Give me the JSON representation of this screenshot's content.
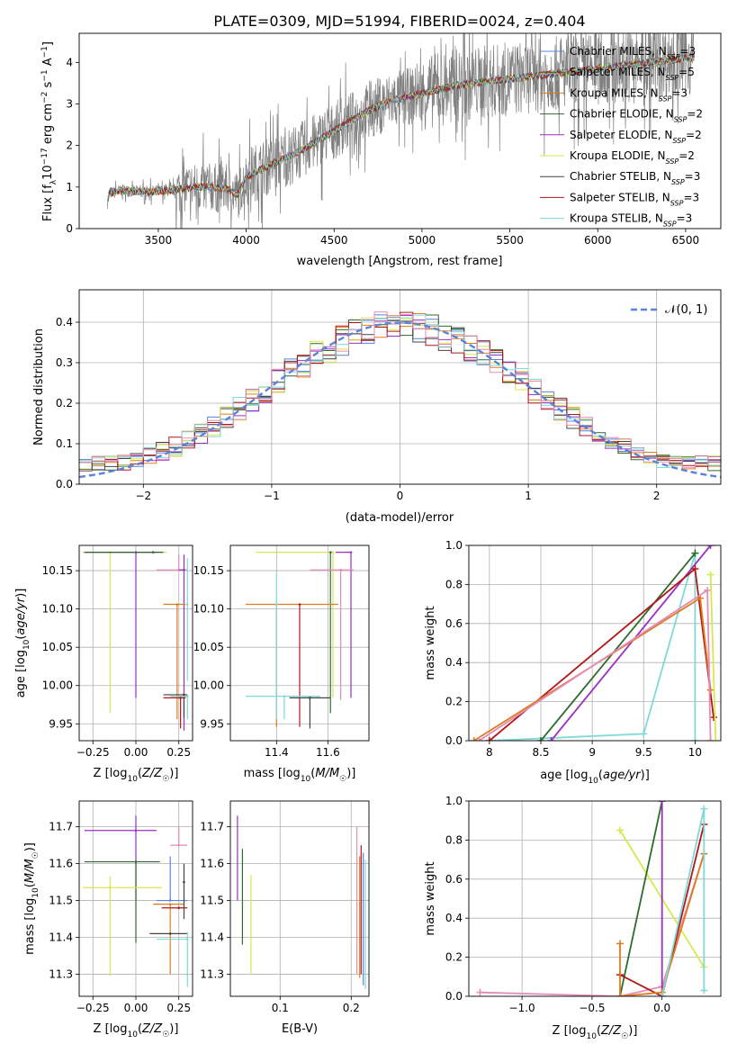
{
  "figure": {
    "title": "PLATE=0309, MJD=51994, FIBERID=0024, z=0.404"
  },
  "colors": {
    "chabrier_miles": "#5b84d8",
    "salpeter_miles": "#7b3f00",
    "kroupa_miles": "#e07a1e",
    "chabrier_elodie": "#2e6b2e",
    "salpeter_elodie": "#9b2fc2",
    "kroupa_elodie": "#d7e84a",
    "chabrier_stelib": "#444444",
    "salpeter_stelib": "#b01818",
    "kroupa_stelib": "#7fd9d9",
    "data": "#808080",
    "normal": "#5b84d8",
    "pink": "#e58bb8"
  },
  "chart_data": [
    {
      "type": "line",
      "panel": "spectrum",
      "xlabel": "wavelength [Angstrom, rest frame]",
      "ylabel": "Flux [f_λ10^-17 erg cm^-2 s^-1 A^-1]",
      "xlim": [
        3050,
        6700
      ],
      "ylim": [
        0,
        4.7
      ],
      "xticks": [
        3500,
        4000,
        4500,
        5000,
        5500,
        6000,
        6500
      ],
      "yticks": [
        0,
        1,
        2,
        3,
        4
      ],
      "legend_position": "top-right",
      "series": [
        {
          "name": "Chabrier MILES, N_SSP=3",
          "color_key": "chabrier_miles"
        },
        {
          "name": "Salpeter MILES, N_SSP=5",
          "color_key": "salpeter_miles"
        },
        {
          "name": "Kroupa MILES, N_SSP=3",
          "color_key": "kroupa_miles"
        },
        {
          "name": "Chabrier ELODIE, N_SSP=2",
          "color_key": "chabrier_elodie"
        },
        {
          "name": "Salpeter ELODIE, N_SSP=2",
          "color_key": "salpeter_elodie"
        },
        {
          "name": "Kroupa ELODIE, N_SSP=2",
          "color_key": "kroupa_elodie"
        },
        {
          "name": "Chabrier STELIB, N_SSP=3",
          "color_key": "chabrier_stelib"
        },
        {
          "name": "Salpeter STELIB, N_SSP=3",
          "color_key": "salpeter_stelib"
        },
        {
          "name": "Kroupa STELIB, N_SSP=3",
          "color_key": "kroupa_stelib"
        }
      ],
      "model_continuum": {
        "x": [
          3200,
          3220,
          3300,
          3400,
          3500,
          3600,
          3700,
          3800,
          3900,
          3950,
          4000,
          4100,
          4200,
          4300,
          4400,
          4500,
          4600,
          4700,
          4800,
          4900,
          5000,
          5100,
          5200,
          5300,
          5400,
          5500,
          5600,
          5700,
          5800,
          5900,
          6000,
          6100,
          6200,
          6300,
          6400,
          6500,
          6550
        ],
        "y": [
          0.4,
          0.85,
          0.92,
          0.88,
          0.9,
          0.93,
          1.0,
          1.0,
          0.95,
          0.8,
          1.25,
          1.45,
          1.65,
          1.85,
          2.1,
          2.35,
          2.6,
          2.85,
          3.05,
          3.15,
          3.25,
          3.35,
          3.45,
          3.5,
          3.55,
          3.6,
          3.65,
          3.7,
          3.75,
          3.8,
          3.85,
          3.9,
          3.95,
          4.0,
          4.05,
          4.1,
          4.12
        ]
      }
    },
    {
      "type": "histogram",
      "panel": "residuals",
      "xlabel": "(data-model)/error",
      "ylabel": "Normed distribution",
      "xlim": [
        -2.5,
        2.5
      ],
      "ylim": [
        0,
        0.48
      ],
      "xticks": [
        -2,
        -1,
        0,
        1,
        2
      ],
      "yticks": [
        0.0,
        0.1,
        0.2,
        0.3,
        0.4
      ],
      "grid": true,
      "legend": {
        "label": "𝒩(0, 1)",
        "position": "top-right"
      },
      "normal_pdf": {
        "mean": 0,
        "sigma": 1
      }
    },
    {
      "type": "scatter",
      "panel": "age_vs_Z",
      "xlabel": "Z [log10(Z/Z☉)]",
      "ylabel": "age [log10(age/yr)]",
      "xlim": [
        -0.33,
        0.33
      ],
      "ylim": [
        9.928,
        10.183
      ],
      "xticks": [
        -0.25,
        0.0,
        0.25
      ],
      "xticklabels": [
        "−0.25",
        "0.00",
        "0.25"
      ],
      "yticks": [
        9.95,
        10.0,
        10.05,
        10.1,
        10.15
      ],
      "yticklabels": [
        "9.95",
        "10.00",
        "10.05",
        "10.10",
        "10.15"
      ],
      "grid": true,
      "points": [
        {
          "x": -0.15,
          "y": 10.174,
          "xerr": [
            0.16,
            0.33
          ],
          "yerr": [
            0.21,
            0.0
          ],
          "color_key": "kroupa_elodie"
        },
        {
          "x": 0.0,
          "y": 10.174,
          "xerr": [
            0.3,
            0.12
          ],
          "yerr": [
            0.19,
            0.0
          ],
          "color_key": "salpeter_elodie"
        },
        {
          "x": 0.1,
          "y": 10.174,
          "xerr": [
            0.4,
            0.06
          ],
          "yerr": [
            0.0,
            0.0
          ],
          "color_key": "chabrier_elodie"
        },
        {
          "x": 0.25,
          "y": 10.151,
          "xerr": [
            0.13,
            0.05
          ],
          "yerr": [
            0.0,
            0.02
          ],
          "color_key": "pink"
        },
        {
          "x": 0.28,
          "y": 10.151,
          "xerr": [
            0.03,
            0.0
          ],
          "yerr": [
            0.21,
            0.02
          ],
          "color_key": "salpeter_elodie"
        },
        {
          "x": 0.24,
          "y": 10.106,
          "xerr": [
            0.08,
            0.05
          ],
          "yerr": [
            0.15,
            0.0
          ],
          "color_key": "kroupa_miles"
        },
        {
          "x": 0.3,
          "y": 10.106,
          "xerr": [
            0.0,
            0.0
          ],
          "yerr": [
            0.1,
            0.06
          ],
          "color_key": "kroupa_stelib"
        },
        {
          "x": 0.28,
          "y": 9.988,
          "xerr": [
            0.12,
            0.02
          ],
          "yerr": [
            0.03,
            0.0
          ],
          "color_key": "chabrier_stelib"
        },
        {
          "x": 0.26,
          "y": 9.984,
          "xerr": [
            0.1,
            0.03
          ],
          "yerr": [
            0.04,
            0.0
          ],
          "color_key": "salpeter_stelib"
        },
        {
          "x": 0.3,
          "y": 9.986,
          "xerr": [
            0.1,
            0.0
          ],
          "yerr": [
            0.03,
            0.0
          ],
          "color_key": "kroupa_stelib"
        }
      ]
    },
    {
      "type": "scatter",
      "panel": "age_vs_mass",
      "xlabel": "mass [log10(M/M☉)]",
      "ylabel": "",
      "xlim": [
        11.22,
        11.76
      ],
      "ylim": [
        9.928,
        10.183
      ],
      "xticks": [
        11.4,
        11.6
      ],
      "xticklabels": [
        "11.4",
        "11.6"
      ],
      "yticks": [
        9.95,
        10.0,
        10.05,
        10.1,
        10.15
      ],
      "yticklabels": [
        "9.95",
        "10.00",
        "10.05",
        "10.10",
        "10.15"
      ],
      "grid": true,
      "points": [
        {
          "x": 11.62,
          "y": 10.174,
          "xerr": [
            0.3,
            0.0
          ],
          "yerr": [
            0.19,
            0.0
          ],
          "color_key": "kroupa_elodie"
        },
        {
          "x": 11.69,
          "y": 10.174,
          "xerr": [
            0.06,
            0.0
          ],
          "yerr": [
            0.19,
            0.0
          ],
          "color_key": "salpeter_elodie"
        },
        {
          "x": 11.61,
          "y": 10.174,
          "xerr": [
            0.0,
            0.0
          ],
          "yerr": [
            0.21,
            0.0
          ],
          "color_key": "chabrier_elodie"
        },
        {
          "x": 11.65,
          "y": 10.151,
          "xerr": [
            0.12,
            0.05
          ],
          "yerr": [
            0.17,
            0.0
          ],
          "color_key": "pink"
        },
        {
          "x": 11.4,
          "y": 10.106,
          "xerr": [
            0.12,
            0.24
          ],
          "yerr": [
            0.16,
            0.0
          ],
          "color_key": "kroupa_miles"
        },
        {
          "x": 11.4,
          "y": 10.106,
          "xerr": [
            0.0,
            0.0
          ],
          "yerr": [
            0.15,
            0.04
          ],
          "color_key": "kroupa_stelib"
        },
        {
          "x": 11.49,
          "y": 10.106,
          "xerr": [
            0.0,
            0.0
          ],
          "yerr": [
            0.16,
            0.0
          ],
          "color_key": "salpeter_stelib"
        },
        {
          "x": 11.43,
          "y": 9.986,
          "xerr": [
            0.15,
            0.14
          ],
          "yerr": [
            0.03,
            0.0
          ],
          "color_key": "kroupa_stelib"
        },
        {
          "x": 11.53,
          "y": 9.984,
          "xerr": [
            0.08,
            0.08
          ],
          "yerr": [
            0.04,
            0.0
          ],
          "color_key": "chabrier_stelib"
        }
      ]
    },
    {
      "type": "line",
      "panel": "mass_weight_vs_age",
      "xlabel": "age [log10(age/yr)]",
      "ylabel": "mass weight",
      "xlim": [
        7.8,
        10.25
      ],
      "ylim": [
        0,
        1.0
      ],
      "xticks": [
        8.0,
        8.5,
        9.0,
        9.5,
        10.0
      ],
      "yticks": [
        0.0,
        0.2,
        0.4,
        0.6,
        0.8,
        1.0
      ],
      "grid": true,
      "series": [
        {
          "color_key": "kroupa_stelib",
          "x": [
            8.0,
            9.5,
            10.0,
            10.0
          ],
          "y": [
            0.0,
            0.035,
            0.96,
            0.0
          ]
        },
        {
          "color_key": "chabrier_elodie",
          "x": [
            8.5,
            10.0
          ],
          "y": [
            0.0,
            0.96
          ]
        },
        {
          "color_key": "salpeter_elodie",
          "x": [
            8.6,
            10.15
          ],
          "y": [
            0.0,
            1.0
          ]
        },
        {
          "color_key": "salpeter_stelib",
          "x": [
            8.0,
            10.0,
            10.18
          ],
          "y": [
            0.0,
            0.88,
            0.12
          ]
        },
        {
          "color_key": "kroupa_miles",
          "x": [
            7.85,
            10.05,
            10.15
          ],
          "y": [
            0.0,
            0.73,
            0.26
          ]
        },
        {
          "color_key": "pink",
          "x": [
            7.9,
            10.12,
            10.15
          ],
          "y": [
            0.0,
            0.77,
            0.0
          ]
        },
        {
          "color_key": "kroupa_elodie",
          "x": [
            10.15,
            10.2
          ],
          "y": [
            0.85,
            0.0
          ]
        }
      ]
    },
    {
      "type": "scatter",
      "panel": "mass_vs_Z",
      "xlabel": "Z [log10(Z/Z☉)]",
      "ylabel": "mass [log10(M/M☉)]",
      "xlim": [
        -0.33,
        0.33
      ],
      "ylim": [
        11.24,
        11.77
      ],
      "xticks": [
        -0.25,
        0.0,
        0.25
      ],
      "xticklabels": [
        "−0.25",
        "0.00",
        "0.25"
      ],
      "yticks": [
        11.3,
        11.4,
        11.5,
        11.6,
        11.7
      ],
      "grid": true,
      "points": [
        {
          "x": 0.0,
          "y": 11.69,
          "xerr": [
            0.3,
            0.12
          ],
          "yerr": [
            0.19,
            0.04
          ],
          "color_key": "salpeter_elodie"
        },
        {
          "x": 0.0,
          "y": 11.605,
          "xerr": [
            0.3,
            0.14
          ],
          "yerr": [
            0.22,
            0.0
          ],
          "color_key": "chabrier_elodie"
        },
        {
          "x": -0.15,
          "y": 11.535,
          "xerr": [
            0.16,
            0.3
          ],
          "yerr": [
            0.24,
            0.03
          ],
          "color_key": "kroupa_elodie"
        },
        {
          "x": 0.25,
          "y": 11.65,
          "xerr": [
            0.05,
            0.05
          ],
          "yerr": [
            0.0,
            0.05
          ],
          "color_key": "pink"
        },
        {
          "x": 0.2,
          "y": 11.49,
          "xerr": [
            0.1,
            0.08
          ],
          "yerr": [
            0.19,
            0.0
          ],
          "color_key": "kroupa_miles"
        },
        {
          "x": 0.2,
          "y": 11.5,
          "xerr": [
            0.08,
            0.1
          ],
          "yerr": [
            0.0,
            0.12
          ],
          "color_key": "chabrier_miles"
        },
        {
          "x": 0.25,
          "y": 11.48,
          "xerr": [
            0.1,
            0.05
          ],
          "yerr": [
            0.0,
            0.0
          ],
          "color_key": "salpeter_stelib"
        },
        {
          "x": 0.2,
          "y": 11.41,
          "xerr": [
            0.12,
            0.1
          ],
          "yerr": [
            0.0,
            0.0
          ],
          "color_key": "chabrier_stelib"
        },
        {
          "x": 0.3,
          "y": 11.395,
          "xerr": [
            0.18,
            0.0
          ],
          "yerr": [
            0.13,
            0.02
          ],
          "color_key": "kroupa_stelib"
        },
        {
          "x": 0.28,
          "y": 11.55,
          "xerr": [
            0.0,
            0.0
          ],
          "yerr": [
            0.1,
            0.05
          ],
          "color_key": "chabrier_stelib"
        }
      ]
    },
    {
      "type": "scatter",
      "panel": "mass_vs_ebv",
      "xlabel": "E(B-V)",
      "ylabel": "",
      "xlim": [
        0.03,
        0.225
      ],
      "ylim": [
        11.24,
        11.77
      ],
      "xticks": [
        0.1,
        0.2
      ],
      "xticklabels": [
        "0.1",
        "0.2"
      ],
      "yticks": [
        11.3,
        11.4,
        11.5,
        11.6,
        11.7
      ],
      "grid": true,
      "points": [
        {
          "x": 0.04,
          "y": 11.61,
          "yerr": [
            0.11,
            0.12
          ],
          "color_key": "salpeter_elodie"
        },
        {
          "x": 0.047,
          "y": 11.51,
          "yerr": [
            0.13,
            0.13
          ],
          "color_key": "chabrier_elodie"
        },
        {
          "x": 0.059,
          "y": 11.43,
          "yerr": [
            0.13,
            0.14
          ],
          "color_key": "kroupa_elodie"
        },
        {
          "x": 0.208,
          "y": 11.5,
          "yerr": [
            0.2,
            0.2
          ],
          "color_key": "pink"
        },
        {
          "x": 0.212,
          "y": 11.48,
          "yerr": [
            0.19,
            0.14
          ],
          "color_key": "kroupa_miles"
        },
        {
          "x": 0.214,
          "y": 11.45,
          "yerr": [
            0.15,
            0.2
          ],
          "color_key": "salpeter_stelib"
        },
        {
          "x": 0.217,
          "y": 11.43,
          "yerr": [
            0.16,
            0.2
          ],
          "color_key": "chabrier_miles"
        },
        {
          "x": 0.22,
          "y": 11.43,
          "yerr": [
            0.17,
            0.18
          ],
          "color_key": "kroupa_stelib"
        }
      ]
    },
    {
      "type": "line",
      "panel": "mass_weight_vs_Z",
      "xlabel": "Z [log10(Z/Z☉)]",
      "ylabel": "mass weight",
      "xlim": [
        -1.38,
        0.42
      ],
      "ylim": [
        0,
        1.0
      ],
      "xticks": [
        -1.0,
        -0.5,
        0.0
      ],
      "xticklabels": [
        "−1.0",
        "−0.5",
        "0.0"
      ],
      "yticks": [
        0.0,
        0.2,
        0.4,
        0.6,
        0.8,
        1.0
      ],
      "grid": true,
      "series": [
        {
          "color_key": "pink",
          "x": [
            -1.3,
            -0.3,
            0.0,
            0.3
          ],
          "y": [
            0.02,
            0.0,
            0.05,
            0.73
          ]
        },
        {
          "color_key": "kroupa_elodie",
          "x": [
            -0.3,
            0.3
          ],
          "y": [
            0.85,
            0.15
          ]
        },
        {
          "color_key": "chabrier_elodie",
          "x": [
            -0.3,
            0.0
          ],
          "y": [
            0.0,
            1.0
          ]
        },
        {
          "color_key": "salpeter_elodie",
          "x": [
            0.0,
            0.0
          ],
          "y": [
            0.0,
            1.0
          ]
        },
        {
          "color_key": "salpeter_stelib",
          "x": [
            -0.3,
            0.0,
            0.3
          ],
          "y": [
            0.11,
            0.0,
            0.88
          ]
        },
        {
          "color_key": "kroupa_miles",
          "x": [
            -0.3,
            -0.3,
            0.0,
            0.3
          ],
          "y": [
            0.27,
            0.0,
            0.02,
            0.73
          ]
        },
        {
          "color_key": "kroupa_stelib",
          "x": [
            0.0,
            0.3,
            0.3
          ],
          "y": [
            0.0,
            0.96,
            0.03
          ]
        }
      ]
    }
  ]
}
